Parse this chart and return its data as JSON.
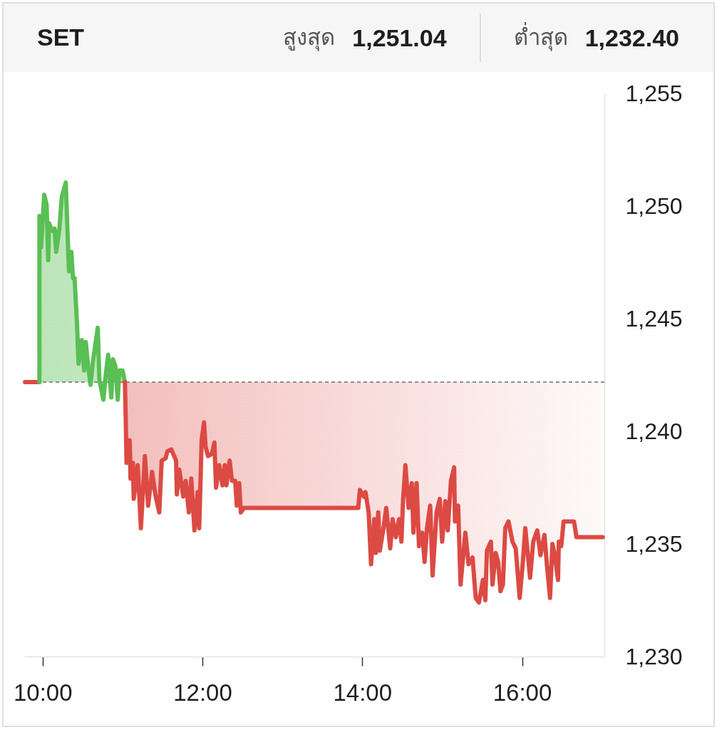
{
  "chart_data": {
    "type": "area",
    "title": "SET",
    "annotations": [
      "สูงสุด",
      "1,251.04",
      "ต่ำสุด",
      "1,232.40"
    ],
    "xlim": [
      9.77,
      17.03
    ],
    "xticks": [
      {
        "value": 10,
        "label": "10:00"
      },
      {
        "value": 12,
        "label": "12:00"
      },
      {
        "value": 14,
        "label": "14:00"
      },
      {
        "value": 16,
        "label": "16:00"
      }
    ],
    "ylim": [
      1230,
      1255
    ],
    "yticks": [
      {
        "value": 1230,
        "label": "1,230"
      },
      {
        "value": 1235,
        "label": "1,235"
      },
      {
        "value": 1240,
        "label": "1,240"
      },
      {
        "value": 1245,
        "label": "1,245"
      },
      {
        "value": 1250,
        "label": "1,250"
      },
      {
        "value": 1255,
        "label": "1,255"
      }
    ],
    "ref_lines": [
      {
        "axis": "y",
        "value": 1242.18,
        "color": "#6e6e6e",
        "line_style": "dashed"
      }
    ],
    "series": [
      {
        "type": "line",
        "color": "#dc4a44",
        "x": [
          9.78,
          9.96
        ],
        "values": [
          1242.18,
          1242.18
        ]
      },
      {
        "color": "#5abf55",
        "x": [
          9.96,
          9.96,
          9.98,
          10.02,
          10.05,
          10.07,
          10.08,
          10.12,
          10.15,
          10.17,
          10.21,
          10.24,
          10.29,
          10.31,
          10.33,
          10.36,
          10.38,
          10.4,
          10.43,
          10.45,
          10.49,
          10.52,
          10.54,
          10.57,
          10.6,
          10.63,
          10.69,
          10.71,
          10.76,
          10.79,
          10.82,
          10.86,
          10.88,
          10.91,
          10.94,
          10.96,
          11.0,
          11.03
        ],
        "values": [
          1242.18,
          1249.56,
          1248.16,
          1250.5,
          1250.06,
          1247.6,
          1249.24,
          1248.9,
          1249.0,
          1247.97,
          1249.0,
          1250.4,
          1251.04,
          1249.0,
          1247.1,
          1247.97,
          1246.8,
          1246.8,
          1244.8,
          1243.0,
          1244.05,
          1242.7,
          1243.96,
          1242.9,
          1242.06,
          1243.1,
          1244.6,
          1242.3,
          1241.4,
          1242.5,
          1243.4,
          1241.5,
          1243.2,
          1242.9,
          1241.4,
          1242.7,
          1242.7,
          1242.18
        ]
      },
      {
        "type": "line",
        "color": "#dc4a44",
        "x": [
          11.03,
          11.04,
          11.05,
          11.09,
          11.1,
          11.13,
          11.14,
          11.19,
          11.23,
          11.28,
          11.32,
          11.37,
          11.41,
          11.46,
          11.49,
          11.54,
          11.56,
          11.61,
          11.67,
          11.68,
          11.71,
          11.76,
          11.79,
          11.83,
          11.86,
          11.9,
          11.94,
          11.96,
          11.99,
          12.02,
          12.04,
          12.07,
          12.12,
          12.15,
          12.17,
          12.21,
          12.25,
          12.28,
          12.3,
          12.34,
          12.37,
          12.41,
          12.43,
          12.46,
          12.48,
          12.52,
          13.95,
          13.97,
          14.02,
          14.04,
          14.08,
          14.11,
          14.15,
          14.17,
          14.2,
          14.22,
          14.27,
          14.3,
          14.35,
          14.38,
          14.42,
          14.46,
          14.49,
          14.51,
          14.54,
          14.58,
          14.62,
          14.64,
          14.68,
          14.71,
          14.75,
          14.78,
          14.81,
          14.85,
          14.88,
          14.93,
          14.97,
          15.0,
          15.04,
          15.07,
          15.11,
          15.15,
          15.16,
          15.2,
          15.23,
          15.29,
          15.33,
          15.38,
          15.42,
          15.46,
          15.51,
          15.54,
          15.56,
          15.61,
          15.63,
          15.67,
          15.7,
          15.73,
          15.76,
          15.79,
          15.83,
          15.88,
          15.92,
          15.97,
          16.01,
          16.04,
          16.1,
          16.14,
          16.19,
          16.23,
          16.28,
          16.31,
          16.35,
          16.38,
          16.41,
          16.45,
          16.46,
          16.49,
          16.52,
          16.65,
          16.68,
          17.01
        ],
        "values": [
          1242.18,
          1240.6,
          1238.6,
          1239.6,
          1237.9,
          1238.6,
          1237.0,
          1238.5,
          1235.7,
          1238.9,
          1236.7,
          1238.2,
          1237.2,
          1236.4,
          1238.7,
          1238.8,
          1239.1,
          1239.2,
          1238.7,
          1237.2,
          1238.3,
          1237.1,
          1237.8,
          1236.4,
          1237.9,
          1235.6,
          1237.3,
          1235.7,
          1239.6,
          1240.4,
          1239.3,
          1238.9,
          1239.0,
          1239.5,
          1237.5,
          1238.5,
          1237.6,
          1238.5,
          1237.6,
          1238.7,
          1237.8,
          1237.8,
          1236.7,
          1237.7,
          1236.4,
          1236.6,
          1236.6,
          1237.4,
          1237.1,
          1237.3,
          1236.4,
          1234.1,
          1236.1,
          1234.6,
          1236.4,
          1234.7,
          1235.8,
          1236.6,
          1234.8,
          1236.1,
          1235.3,
          1236.1,
          1235.1,
          1236.9,
          1238.5,
          1236.6,
          1237.7,
          1235.5,
          1237.7,
          1234.9,
          1235.5,
          1234.2,
          1235.7,
          1236.7,
          1233.6,
          1236.4,
          1237.0,
          1235.1,
          1236.9,
          1235.6,
          1237.8,
          1238.4,
          1236.0,
          1236.7,
          1233.2,
          1235.5,
          1234.1,
          1234.4,
          1232.6,
          1232.4,
          1233.4,
          1232.5,
          1234.7,
          1235.1,
          1233.2,
          1234.6,
          1234.2,
          1232.9,
          1233.2,
          1235.7,
          1236.0,
          1235.1,
          1234.8,
          1232.6,
          1234.2,
          1235.7,
          1233.5,
          1235.1,
          1235.6,
          1234.5,
          1235.4,
          1234.1,
          1232.6,
          1235.0,
          1234.5,
          1233.4,
          1235.1,
          1234.9,
          1236.0,
          1236.0,
          1235.3,
          1235.3
        ],
        "lower": [
          1242.18,
          1240.6,
          1238.6,
          1239.6,
          1237.9,
          1238.6,
          1237.0,
          1238.5,
          1235.7,
          1238.9,
          1236.7,
          1238.2,
          1237.2,
          1236.4,
          1238.7,
          1238.8,
          1239.1,
          1239.2,
          1238.7,
          1237.2,
          1238.3,
          1237.1,
          1237.8,
          1236.4,
          1237.9,
          1235.6,
          1237.3,
          1235.7,
          1239.6,
          1240.4,
          1239.3,
          1238.9,
          1239.0,
          1239.5,
          1237.5,
          1238.5,
          1237.6,
          1238.5,
          1237.6,
          1238.7,
          1237.8,
          1237.8,
          1236.7,
          1237.7,
          1236.4,
          1236.6,
          1236.6,
          1237.4,
          1237.1,
          1237.3,
          1236.4,
          1234.1,
          1236.1,
          1234.6,
          1236.4,
          1234.7,
          1235.8,
          1236.6,
          1234.8,
          1236.1,
          1235.3,
          1236.1,
          1235.1,
          1236.9,
          1238.5,
          1236.6,
          1237.7,
          1235.5,
          1237.7,
          1234.9,
          1235.5,
          1234.2,
          1235.7,
          1236.7,
          1233.6,
          1236.4,
          1237.0,
          1235.1,
          1236.9,
          1235.6,
          1237.8,
          1238.4,
          1236.0,
          1236.7,
          1233.2,
          1235.5,
          1234.1,
          1234.4,
          1232.6,
          1232.4,
          1233.4,
          1232.5,
          1234.7,
          1235.1,
          1233.2,
          1234.6,
          1234.2,
          1232.9,
          1233.2,
          1235.7,
          1236.0,
          1235.1,
          1234.8,
          1232.6,
          1234.2,
          1235.7,
          1233.5,
          1235.1,
          1235.6,
          1234.5,
          1235.4,
          1234.1,
          1232.6,
          1235.0,
          1234.5,
          1233.4,
          1235.1,
          1234.9,
          1236.0,
          1236.0,
          1235.3,
          1235.3
        ],
        "upper": [
          1242.18,
          1242.18,
          1242.18,
          1242.18,
          1242.18,
          1242.18,
          1242.18,
          1242.18,
          1242.18,
          1242.18,
          1242.18,
          1242.18,
          1242.18,
          1242.18,
          1242.18,
          1242.18,
          1242.18,
          1242.18,
          1242.18,
          1242.18,
          1242.18,
          1242.18,
          1242.18,
          1242.18,
          1242.18,
          1242.18,
          1242.18,
          1242.18,
          1242.18,
          1242.18,
          1242.18,
          1242.18,
          1242.18,
          1242.18,
          1242.18,
          1242.18,
          1242.18,
          1242.18,
          1242.18,
          1242.18,
          1242.18,
          1242.18,
          1242.18,
          1242.18,
          1242.18,
          1242.18,
          1242.18,
          1242.18,
          1242.18,
          1242.18,
          1242.18,
          1242.18,
          1242.18,
          1242.18,
          1242.18,
          1242.18,
          1242.18,
          1242.18,
          1242.18,
          1242.18,
          1242.18,
          1242.18,
          1242.18,
          1242.18,
          1242.18,
          1242.18,
          1242.18,
          1242.18,
          1242.18,
          1242.18,
          1242.18,
          1242.18,
          1242.18,
          1242.18,
          1242.18,
          1242.18,
          1242.18,
          1242.18,
          1242.18,
          1242.18,
          1242.18,
          1242.18,
          1242.18,
          1242.18,
          1242.18,
          1242.18,
          1242.18,
          1242.18,
          1242.18,
          1242.18,
          1242.18,
          1242.18,
          1242.18,
          1242.18,
          1242.18,
          1242.18,
          1242.18,
          1242.18,
          1242.18,
          1242.18,
          1242.18,
          1242.18,
          1242.18,
          1242.18,
          1242.18,
          1242.18,
          1242.18,
          1242.18,
          1242.18,
          1242.18,
          1242.18,
          1242.18,
          1242.18,
          1242.18,
          1242.18,
          1242.18,
          1242.18,
          1242.18,
          1242.18,
          1242.18,
          1242.18,
          1242.18
        ]
      }
    ]
  }
}
